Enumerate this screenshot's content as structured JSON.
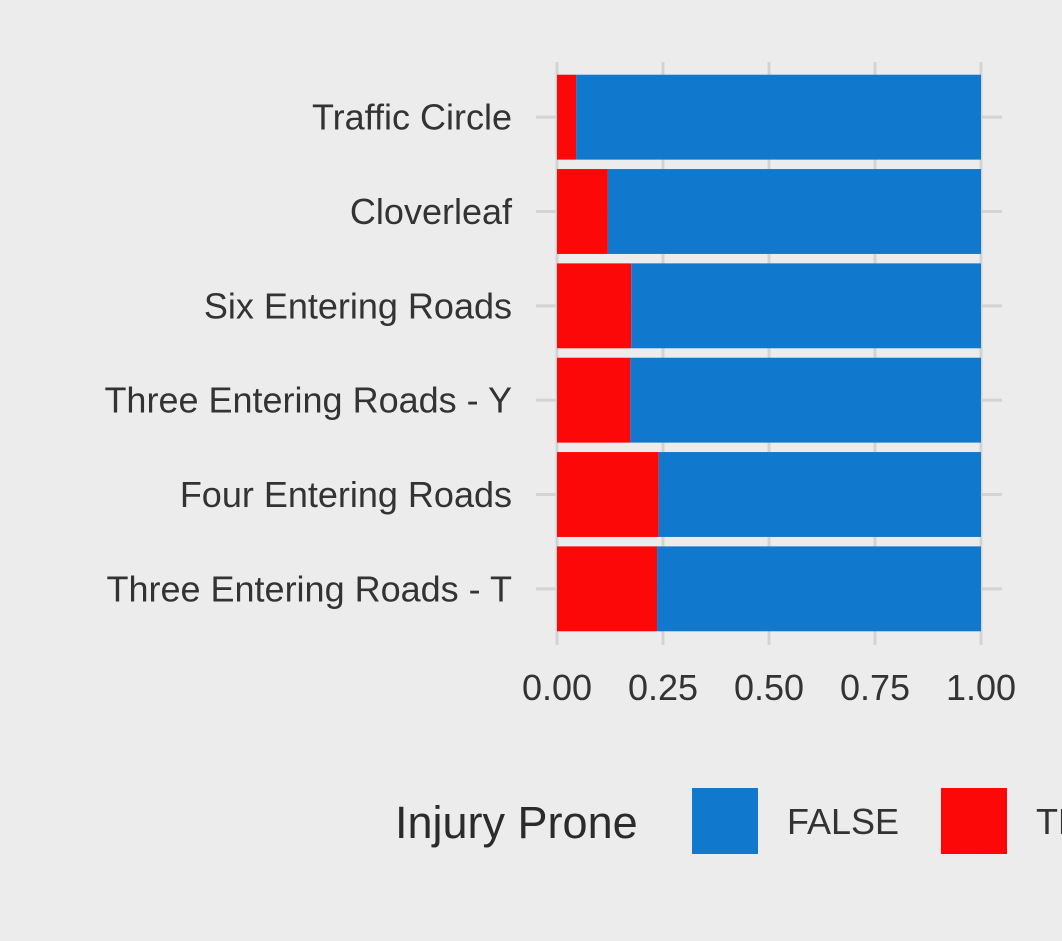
{
  "chart_data": {
    "type": "bar",
    "orientation": "horizontal",
    "stacked": true,
    "categories": [
      "Traffic Circle",
      "Cloverleaf",
      "Six Entering Roads",
      "Three Entering Roads - Y",
      "Four Entering Roads",
      "Three Entering Roads - T"
    ],
    "series": [
      {
        "name": "TRUE",
        "color": "#fc0808",
        "values": [
          0.045,
          0.12,
          0.175,
          0.173,
          0.24,
          0.236
        ]
      },
      {
        "name": "FALSE",
        "color": "#1079cd",
        "values": [
          0.955,
          0.88,
          0.825,
          0.827,
          0.76,
          0.764
        ]
      }
    ],
    "xlim": [
      0,
      1
    ],
    "x_ticks": [
      "0.00",
      "0.25",
      "0.50",
      "0.75",
      "1.00"
    ],
    "x_tick_values": [
      0,
      0.25,
      0.5,
      0.75,
      1.0
    ],
    "title": "",
    "xlabel": "",
    "ylabel": "",
    "grid": true,
    "legend": {
      "title": "Injury Prone",
      "position": "bottom",
      "entries": [
        {
          "label": "FALSE",
          "color": "#1079cd"
        },
        {
          "label": "TRUE",
          "color": "#fc0808"
        }
      ]
    },
    "background": "#ececec",
    "grid_color": "#d3d3d3"
  }
}
